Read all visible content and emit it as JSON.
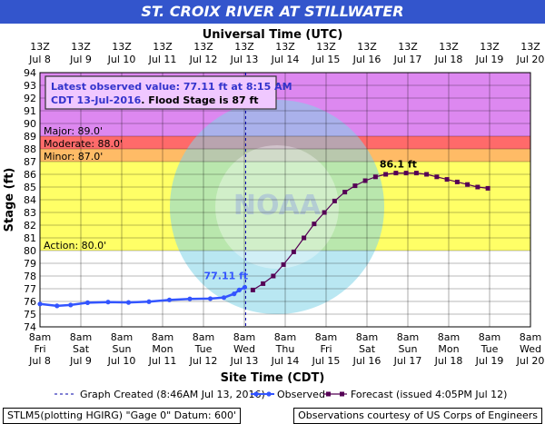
{
  "title": "ST. CROIX RIVER AT STILLWATER",
  "top_axis_title": "Universal Time (UTC)",
  "watermark": "NATIONAL OCEANIC AND ATMOSPHERIC ADMINISTRATION · U.S. DEPARTMENT OF COMMERCE · NOAA",
  "info_box": {
    "line1": "Latest observed value: 77.11 ft at 8:15 AM",
    "line2a": "CDT 13-Jul-2016",
    "line2b": ". Flood Stage is 87 ft"
  },
  "legend": {
    "created": "Graph Created (8:46AM Jul 13, 2016)",
    "observed": "Observed",
    "forecast": "Forecast (issued 4:05PM Jul 12)"
  },
  "footer": {
    "left": "STLM5(plotting HGIRG) \"Gage 0\" Datum: 600'",
    "right": "Observations courtesy of US Corps of Engineers"
  },
  "colors": {
    "title_bg": "#3355cc",
    "major": "#dd88f0",
    "moderate": "#ff6a6a",
    "minor": "#ffbb66",
    "action": "#ffff66",
    "observed": "#3355ff",
    "forecast": "#550055",
    "created_line": "#0000aa",
    "info_text": "#3333cc"
  },
  "chart_data": {
    "type": "line",
    "xlabel": "Site Time (CDT)",
    "ylabel": "Stage (ft)",
    "ylim": [
      74,
      94
    ],
    "xlim": [
      "2016-07-08 08:00",
      "2016-07-20 08:00"
    ],
    "y_ticks": [
      74,
      75,
      76,
      77,
      78,
      79,
      80,
      81,
      82,
      83,
      84,
      85,
      86,
      87,
      88,
      89,
      90,
      91,
      92,
      93,
      94
    ],
    "x_ticks_bottom": [
      {
        "time": "8am",
        "day": "Fri",
        "date": "Jul 8"
      },
      {
        "time": "8am",
        "day": "Sat",
        "date": "Jul 9"
      },
      {
        "time": "8am",
        "day": "Sun",
        "date": "Jul 10"
      },
      {
        "time": "8am",
        "day": "Mon",
        "date": "Jul 11"
      },
      {
        "time": "8am",
        "day": "Tue",
        "date": "Jul 12"
      },
      {
        "time": "8am",
        "day": "Wed",
        "date": "Jul 13"
      },
      {
        "time": "8am",
        "day": "Thu",
        "date": "Jul 14"
      },
      {
        "time": "8am",
        "day": "Fri",
        "date": "Jul 15"
      },
      {
        "time": "8am",
        "day": "Sat",
        "date": "Jul 16"
      },
      {
        "time": "8am",
        "day": "Sun",
        "date": "Jul 17"
      },
      {
        "time": "8am",
        "day": "Mon",
        "date": "Jul 18"
      },
      {
        "time": "8am",
        "day": "Tue",
        "date": "Jul 19"
      },
      {
        "time": "8am",
        "day": "Wed",
        "date": "Jul 20"
      }
    ],
    "x_ticks_top": [
      {
        "time": "13Z",
        "date": "Jul 8"
      },
      {
        "time": "13Z",
        "date": "Jul 9"
      },
      {
        "time": "13Z",
        "date": "Jul 10"
      },
      {
        "time": "13Z",
        "date": "Jul 11"
      },
      {
        "time": "13Z",
        "date": "Jul 12"
      },
      {
        "time": "13Z",
        "date": "Jul 13"
      },
      {
        "time": "13Z",
        "date": "Jul 14"
      },
      {
        "time": "13Z",
        "date": "Jul 15"
      },
      {
        "time": "13Z",
        "date": "Jul 16"
      },
      {
        "time": "13Z",
        "date": "Jul 17"
      },
      {
        "time": "13Z",
        "date": "Jul 18"
      },
      {
        "time": "13Z",
        "date": "Jul 19"
      },
      {
        "time": "13Z",
        "date": "Jul 20"
      }
    ],
    "flood_categories": [
      {
        "name": "Major",
        "label": "Major: 89.0'",
        "from": 89,
        "to": 94,
        "color": "#dd88f0"
      },
      {
        "name": "Moderate",
        "label": "Moderate: 88.0'",
        "from": 88,
        "to": 89,
        "color": "#ff6a6a"
      },
      {
        "name": "Minor",
        "label": "Minor: 87.0'",
        "from": 87,
        "to": 88,
        "color": "#ffbb66"
      },
      {
        "name": "Action",
        "label": "Action: 80.0'",
        "from": 80,
        "to": 87,
        "color": "#ffff66"
      }
    ],
    "graph_created": "2016-07-13 08:46",
    "series": [
      {
        "name": "Observed",
        "style": "line-dots",
        "annotation": "77.11 ft",
        "points": [
          {
            "x": "2016-07-08 08:00",
            "y": 75.8
          },
          {
            "x": "2016-07-08 18:00",
            "y": 75.65
          },
          {
            "x": "2016-07-09 02:00",
            "y": 75.72
          },
          {
            "x": "2016-07-09 12:00",
            "y": 75.9
          },
          {
            "x": "2016-07-10 00:00",
            "y": 75.95
          },
          {
            "x": "2016-07-10 12:00",
            "y": 75.92
          },
          {
            "x": "2016-07-11 00:00",
            "y": 75.98
          },
          {
            "x": "2016-07-11 12:00",
            "y": 76.12
          },
          {
            "x": "2016-07-12 00:00",
            "y": 76.2
          },
          {
            "x": "2016-07-12 12:00",
            "y": 76.22
          },
          {
            "x": "2016-07-12 20:00",
            "y": 76.3
          },
          {
            "x": "2016-07-13 02:00",
            "y": 76.6
          },
          {
            "x": "2016-07-13 05:00",
            "y": 76.9
          },
          {
            "x": "2016-07-13 08:15",
            "y": 77.11
          }
        ]
      },
      {
        "name": "Forecast (issued 4:05PM Jul 12)",
        "style": "line-squares",
        "annotation": "86.1 ft",
        "points": [
          {
            "x": "2016-07-13 13:00",
            "y": 76.9
          },
          {
            "x": "2016-07-13 19:00",
            "y": 77.4
          },
          {
            "x": "2016-07-14 01:00",
            "y": 78.0
          },
          {
            "x": "2016-07-14 07:00",
            "y": 78.9
          },
          {
            "x": "2016-07-14 13:00",
            "y": 79.9
          },
          {
            "x": "2016-07-14 19:00",
            "y": 81.0
          },
          {
            "x": "2016-07-15 01:00",
            "y": 82.1
          },
          {
            "x": "2016-07-15 07:00",
            "y": 83.0
          },
          {
            "x": "2016-07-15 13:00",
            "y": 83.9
          },
          {
            "x": "2016-07-15 19:00",
            "y": 84.6
          },
          {
            "x": "2016-07-16 01:00",
            "y": 85.1
          },
          {
            "x": "2016-07-16 07:00",
            "y": 85.5
          },
          {
            "x": "2016-07-16 13:00",
            "y": 85.8
          },
          {
            "x": "2016-07-16 19:00",
            "y": 86.0
          },
          {
            "x": "2016-07-17 01:00",
            "y": 86.1
          },
          {
            "x": "2016-07-17 07:00",
            "y": 86.1
          },
          {
            "x": "2016-07-17 13:00",
            "y": 86.1
          },
          {
            "x": "2016-07-17 19:00",
            "y": 86.0
          },
          {
            "x": "2016-07-18 01:00",
            "y": 85.8
          },
          {
            "x": "2016-07-18 07:00",
            "y": 85.6
          },
          {
            "x": "2016-07-18 13:00",
            "y": 85.4
          },
          {
            "x": "2016-07-18 19:00",
            "y": 85.2
          },
          {
            "x": "2016-07-19 01:00",
            "y": 85.0
          },
          {
            "x": "2016-07-19 07:00",
            "y": 84.9
          }
        ]
      }
    ]
  }
}
